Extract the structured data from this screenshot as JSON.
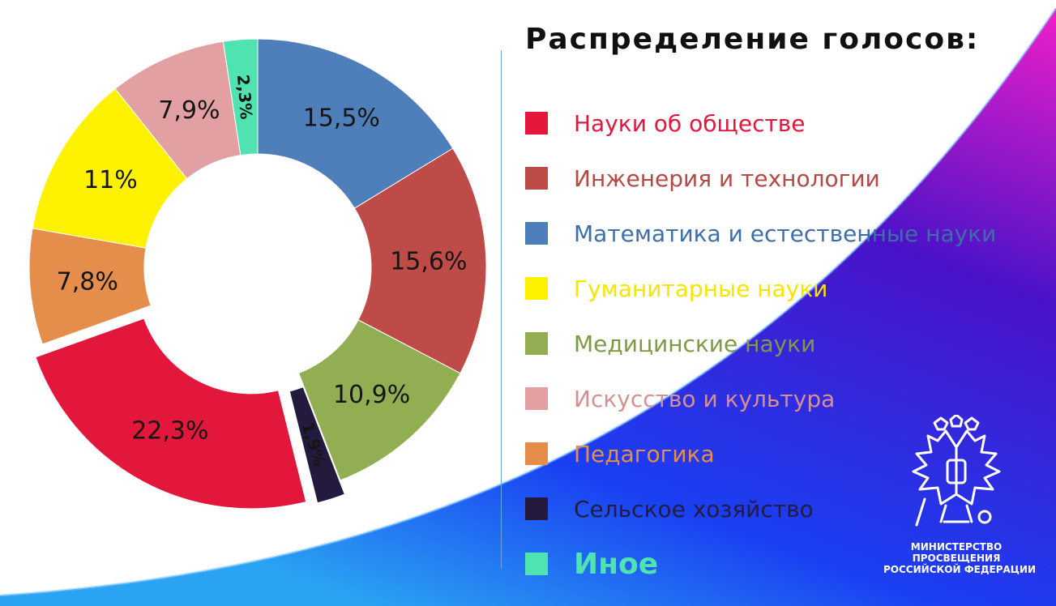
{
  "chart_data": {
    "type": "pie",
    "title": "Распределение голосов:",
    "series": [
      {
        "name": "Математика и естественные науки",
        "value": 15.5,
        "label": "15,5%",
        "color": "#4f7fbb"
      },
      {
        "name": "Инженерия и технологии",
        "value": 15.6,
        "label": "15,6%",
        "color": "#be4b48"
      },
      {
        "name": "Медицинские науки",
        "value": 10.9,
        "label": "10,9%",
        "color": "#92ae53"
      },
      {
        "name": "Сельское хозяйство",
        "value": 1.9,
        "label": "1,9%",
        "color": "#231a3e",
        "exploded": true
      },
      {
        "name": "Науки об обществе",
        "value": 22.3,
        "label": "22,3%",
        "color": "#e2173b",
        "exploded": true
      },
      {
        "name": "Педагогика",
        "value": 7.8,
        "label": "7,8%",
        "color": "#e58e4c"
      },
      {
        "name": "Гуманитарные науки",
        "value": 11,
        "label": "11%",
        "color": "#fff200"
      },
      {
        "name": "Искусство и культура",
        "value": 7.9,
        "label": "7,9%",
        "color": "#e3a0a3"
      },
      {
        "name": "Иное",
        "value": 2.3,
        "label": "2,3%",
        "color": "#4ee3b0"
      }
    ],
    "legend_placement": "right",
    "legend_order": [
      "Науки об обществе",
      "Инженерия и технологии",
      "Математика и естественные науки",
      "Гуманитарные науки",
      "Медицинские науки",
      "Искусство и культура",
      "Педагогика",
      "Сельское хозяйство",
      "Иное"
    ],
    "legend_text_colors": {
      "Науки об обществе": "#e2173b",
      "Инженерия и технологии": "#b44a46",
      "Математика и естественные науки": "#3f6da9",
      "Гуманитарные науки": "#f5e600",
      "Медицинские науки": "#7e9a46",
      "Искусство и культура": "#d59093",
      "Педагогика": "#e58e4c",
      "Сельское хозяйство": "#241c40",
      "Иное": "#4ee3b0"
    }
  },
  "logo": {
    "lines": [
      "МИНИСТЕРСТВО",
      "ПРОСВЕЩЕНИЯ",
      "РОССИЙСКОЙ ФЕДЕРАЦИИ"
    ],
    "icon": "double-headed-eagle-emblem"
  },
  "colors": {
    "gradient_magenta": "#ef1fc9",
    "gradient_purple": "#4a12c8",
    "gradient_blue": "#1a3ff2",
    "gradient_cyan": "#2aa3f2",
    "divider": "#6aa7d8"
  }
}
